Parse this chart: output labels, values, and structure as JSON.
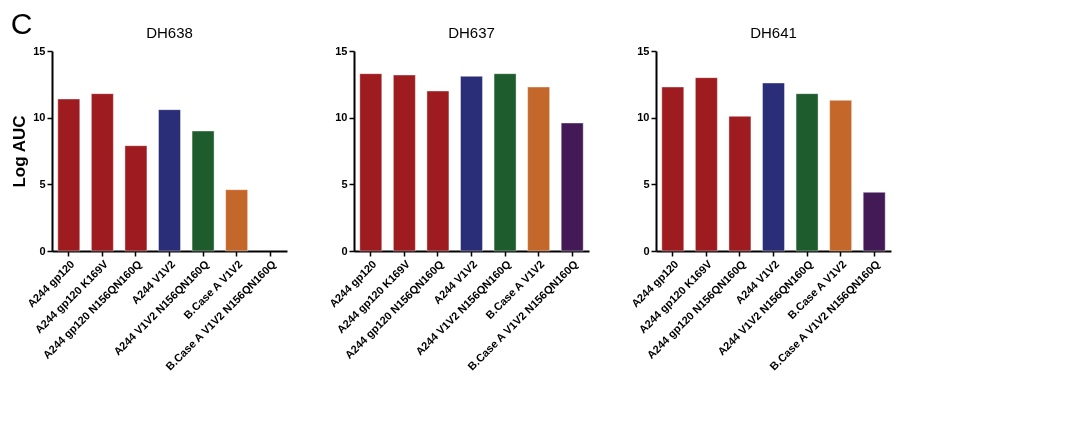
{
  "chart_data": [
    {
      "type": "bar",
      "title": "DH638",
      "ylabel": "Log AUC",
      "annotations": [
        "C"
      ],
      "categories": [
        "A244 gp120",
        "A244 gp120 K169V",
        "A244 gp120 N156QN160Q",
        "A244 V1V2",
        "A244 V1V2 N156QN160Q",
        "B.Case A V1V2",
        "B.Case A V1V2 N156QN160Q"
      ],
      "values": [
        11.4,
        11.8,
        7.9,
        10.6,
        9.0,
        4.6,
        null
      ],
      "colors": [
        "#9e1c20",
        "#9e1c20",
        "#9e1c20",
        "#2a2d77",
        "#1e5c2e",
        "#c4672a",
        "#431a55"
      ],
      "ylim": [
        0,
        15
      ],
      "yticks": [
        0,
        5,
        10,
        15
      ],
      "grid": false
    },
    {
      "type": "bar",
      "title": "DH637",
      "categories": [
        "A244 gp120",
        "A244 gp120 K169V",
        "A244 gp120 N156QN160Q",
        "A244 V1V2",
        "A244 V1V2 N156QN160Q",
        "B.Case A V1V2",
        "B.Case A V1V2 N156QN160Q"
      ],
      "values": [
        13.3,
        13.2,
        12.0,
        13.1,
        13.3,
        12.3,
        9.6
      ],
      "colors": [
        "#9e1c20",
        "#9e1c20",
        "#9e1c20",
        "#2a2d77",
        "#1e5c2e",
        "#c4672a",
        "#431a55"
      ],
      "ylim": [
        0,
        15
      ],
      "yticks": [
        0,
        5,
        10,
        15
      ],
      "grid": false
    },
    {
      "type": "bar",
      "title": "DH641",
      "categories": [
        "A244 gp120",
        "A244 gp120 K169V",
        "A244 gp120 N156QN160Q",
        "A244 V1V2",
        "A244 V1V2 N156QN160Q",
        "B.Case A V1V2",
        "B.Case A V1V2 N156QN160Q"
      ],
      "values": [
        12.3,
        13.0,
        10.1,
        12.6,
        11.8,
        11.3,
        4.4
      ],
      "colors": [
        "#9e1c20",
        "#9e1c20",
        "#9e1c20",
        "#2a2d77",
        "#1e5c2e",
        "#c4672a",
        "#431a55"
      ],
      "ylim": [
        0,
        15
      ],
      "yticks": [
        0,
        5,
        10,
        15
      ],
      "grid": false
    }
  ]
}
